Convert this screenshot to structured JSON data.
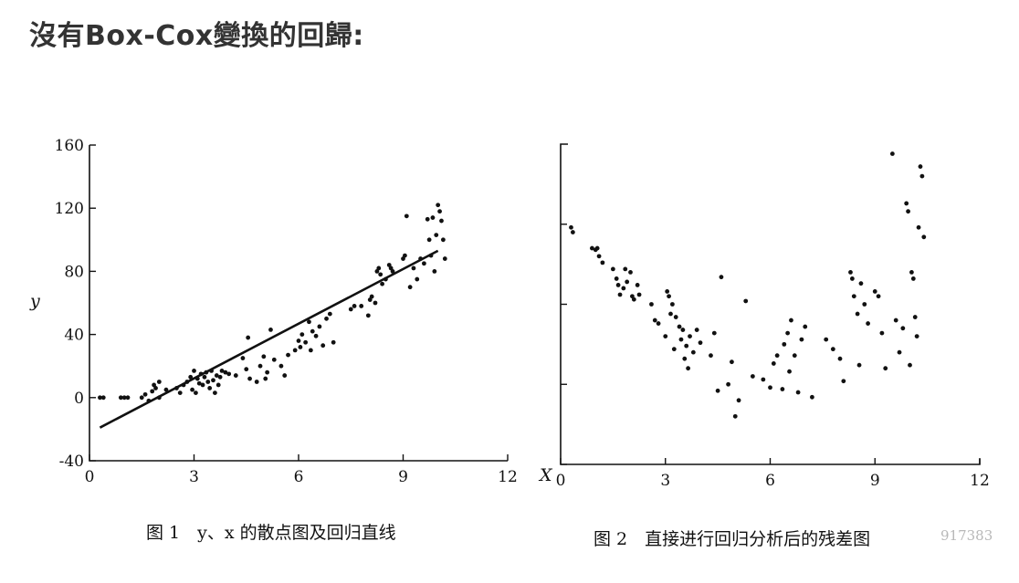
{
  "heading": "沒有Box-Cox變換的回歸:",
  "chart_data": [
    {
      "type": "scatter",
      "caption": "图 1　y、x 的散点图及回归直线",
      "ylabel": "y",
      "xlabel": "",
      "xlim": [
        0,
        12
      ],
      "ylim": [
        -40,
        160
      ],
      "xticks": [
        "0",
        "3",
        "6",
        "9",
        "12"
      ],
      "yticks": [
        "-40",
        "0",
        "40",
        "80",
        "120",
        "160"
      ],
      "regression_line": {
        "x": [
          0.3,
          10.0
        ],
        "y": [
          -19,
          93
        ]
      },
      "points": [
        [
          0.3,
          0
        ],
        [
          0.4,
          0
        ],
        [
          0.9,
          0
        ],
        [
          1.0,
          0
        ],
        [
          1.1,
          0
        ],
        [
          1.5,
          0
        ],
        [
          1.6,
          2
        ],
        [
          1.7,
          -2
        ],
        [
          1.8,
          4
        ],
        [
          1.85,
          8
        ],
        [
          1.9,
          6
        ],
        [
          2.0,
          10
        ],
        [
          2.0,
          0
        ],
        [
          2.2,
          5
        ],
        [
          2.5,
          6
        ],
        [
          2.6,
          3
        ],
        [
          2.7,
          8
        ],
        [
          2.8,
          10
        ],
        [
          2.9,
          13
        ],
        [
          2.95,
          5
        ],
        [
          3.0,
          17
        ],
        [
          3.05,
          3
        ],
        [
          3.1,
          12
        ],
        [
          3.15,
          9
        ],
        [
          3.2,
          15
        ],
        [
          3.25,
          8
        ],
        [
          3.3,
          13
        ],
        [
          3.35,
          16
        ],
        [
          3.4,
          10
        ],
        [
          3.45,
          6
        ],
        [
          3.5,
          17
        ],
        [
          3.55,
          11
        ],
        [
          3.6,
          3
        ],
        [
          3.65,
          14
        ],
        [
          3.7,
          8
        ],
        [
          3.75,
          13
        ],
        [
          3.8,
          17
        ],
        [
          3.9,
          16
        ],
        [
          4.0,
          15
        ],
        [
          4.2,
          14
        ],
        [
          4.4,
          25
        ],
        [
          4.5,
          18
        ],
        [
          4.55,
          38
        ],
        [
          4.6,
          12
        ],
        [
          4.8,
          10
        ],
        [
          4.9,
          20
        ],
        [
          5.0,
          26
        ],
        [
          5.05,
          12
        ],
        [
          5.1,
          16
        ],
        [
          5.2,
          43
        ],
        [
          5.3,
          24
        ],
        [
          5.5,
          20
        ],
        [
          5.6,
          14
        ],
        [
          5.7,
          27
        ],
        [
          5.9,
          30
        ],
        [
          6.0,
          36
        ],
        [
          6.05,
          32
        ],
        [
          6.1,
          40
        ],
        [
          6.2,
          35
        ],
        [
          6.3,
          48
        ],
        [
          6.35,
          30
        ],
        [
          6.4,
          42
        ],
        [
          6.5,
          39
        ],
        [
          6.6,
          45
        ],
        [
          6.7,
          33
        ],
        [
          6.8,
          50
        ],
        [
          6.9,
          53
        ],
        [
          7.0,
          35
        ],
        [
          7.5,
          56
        ],
        [
          7.6,
          58
        ],
        [
          7.8,
          58
        ],
        [
          8.0,
          52
        ],
        [
          8.05,
          62
        ],
        [
          8.1,
          64
        ],
        [
          8.2,
          60
        ],
        [
          8.25,
          80
        ],
        [
          8.3,
          82
        ],
        [
          8.35,
          78
        ],
        [
          8.4,
          72
        ],
        [
          8.5,
          75
        ],
        [
          8.6,
          84
        ],
        [
          8.65,
          82
        ],
        [
          8.7,
          80
        ],
        [
          9.0,
          88
        ],
        [
          9.05,
          90
        ],
        [
          9.1,
          115
        ],
        [
          9.2,
          70
        ],
        [
          9.3,
          82
        ],
        [
          9.4,
          75
        ],
        [
          9.5,
          88
        ],
        [
          9.6,
          85
        ],
        [
          9.7,
          113
        ],
        [
          9.75,
          100
        ],
        [
          9.8,
          90
        ],
        [
          9.85,
          114
        ],
        [
          9.9,
          80
        ],
        [
          9.95,
          103
        ],
        [
          10.0,
          122
        ],
        [
          10.05,
          118
        ],
        [
          10.1,
          112
        ],
        [
          10.15,
          100
        ],
        [
          10.2,
          88
        ]
      ]
    },
    {
      "type": "scatter",
      "caption": "图 2　直接进行回归分析后的残差图",
      "ylabel": "",
      "xlabel": "X",
      "xlim": [
        0,
        12
      ],
      "ylim": [
        -50,
        150
      ],
      "xticks": [
        "0",
        "3",
        "6",
        "9",
        "12"
      ],
      "watermark": "917383",
      "points": [
        [
          0.3,
          98
        ],
        [
          0.35,
          95
        ],
        [
          0.9,
          85
        ],
        [
          1.0,
          84
        ],
        [
          1.05,
          85
        ],
        [
          1.1,
          80
        ],
        [
          1.2,
          76
        ],
        [
          1.5,
          72
        ],
        [
          1.6,
          66
        ],
        [
          1.65,
          62
        ],
        [
          1.7,
          56
        ],
        [
          1.8,
          60
        ],
        [
          1.85,
          72
        ],
        [
          1.9,
          64
        ],
        [
          2.0,
          70
        ],
        [
          2.05,
          55
        ],
        [
          2.1,
          53
        ],
        [
          2.2,
          62
        ],
        [
          2.25,
          56
        ],
        [
          2.6,
          50
        ],
        [
          2.7,
          40
        ],
        [
          2.8,
          38
        ],
        [
          3.0,
          30
        ],
        [
          3.05,
          58
        ],
        [
          3.1,
          55
        ],
        [
          3.15,
          44
        ],
        [
          3.2,
          50
        ],
        [
          3.25,
          22
        ],
        [
          3.3,
          42
        ],
        [
          3.4,
          36
        ],
        [
          3.45,
          28
        ],
        [
          3.5,
          34
        ],
        [
          3.55,
          16
        ],
        [
          3.6,
          24
        ],
        [
          3.65,
          10
        ],
        [
          3.7,
          30
        ],
        [
          3.8,
          20
        ],
        [
          3.9,
          34
        ],
        [
          4.0,
          26
        ],
        [
          4.3,
          18
        ],
        [
          4.4,
          32
        ],
        [
          4.5,
          -4
        ],
        [
          4.6,
          67
        ],
        [
          4.8,
          0
        ],
        [
          4.9,
          14
        ],
        [
          5.0,
          -20
        ],
        [
          5.1,
          -10
        ],
        [
          5.3,
          52
        ],
        [
          5.5,
          5
        ],
        [
          5.8,
          3
        ],
        [
          6.0,
          -2
        ],
        [
          6.1,
          13
        ],
        [
          6.2,
          18
        ],
        [
          6.35,
          -3
        ],
        [
          6.4,
          25
        ],
        [
          6.5,
          32
        ],
        [
          6.55,
          8
        ],
        [
          6.6,
          40
        ],
        [
          6.7,
          18
        ],
        [
          6.8,
          -5
        ],
        [
          6.9,
          28
        ],
        [
          7.0,
          36
        ],
        [
          7.2,
          -8
        ],
        [
          7.6,
          28
        ],
        [
          7.8,
          22
        ],
        [
          8.0,
          16
        ],
        [
          8.1,
          2
        ],
        [
          8.3,
          70
        ],
        [
          8.35,
          66
        ],
        [
          8.4,
          55
        ],
        [
          8.5,
          44
        ],
        [
          8.55,
          12
        ],
        [
          8.6,
          63
        ],
        [
          8.7,
          50
        ],
        [
          8.8,
          38
        ],
        [
          9.0,
          58
        ],
        [
          9.1,
          55
        ],
        [
          9.2,
          32
        ],
        [
          9.3,
          10
        ],
        [
          9.5,
          144
        ],
        [
          9.6,
          40
        ],
        [
          9.7,
          20
        ],
        [
          9.8,
          35
        ],
        [
          9.9,
          113
        ],
        [
          9.95,
          108
        ],
        [
          10.0,
          12
        ],
        [
          10.05,
          70
        ],
        [
          10.1,
          66
        ],
        [
          10.15,
          42
        ],
        [
          10.2,
          30
        ],
        [
          10.25,
          98
        ],
        [
          10.3,
          136
        ],
        [
          10.35,
          130
        ],
        [
          10.4,
          92
        ]
      ]
    }
  ]
}
